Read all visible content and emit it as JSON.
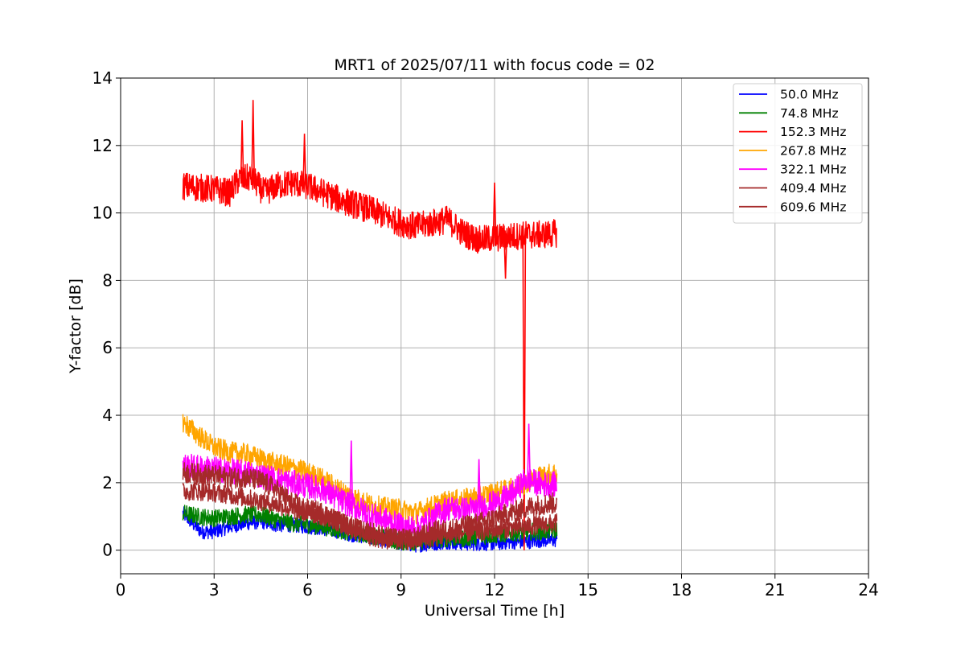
{
  "chart_data": {
    "type": "line",
    "title": "MRT1 of 2025/07/11 with focus code = 02",
    "xlabel": "Universal Time [h]",
    "ylabel": "Y-factor [dB]",
    "xlim": [
      0,
      24
    ],
    "ylim": [
      -0.7,
      14
    ],
    "xticks": [
      0,
      3,
      6,
      9,
      12,
      15,
      18,
      21,
      24
    ],
    "yticks": [
      0,
      2,
      4,
      6,
      8,
      10,
      12,
      14
    ],
    "grid": true,
    "legend_position": "top-right",
    "series": [
      {
        "name": " 50.0 MHz",
        "color": "#0000ff",
        "noise": 0.22,
        "points": [
          [
            2.0,
            1.1
          ],
          [
            2.3,
            0.8
          ],
          [
            2.6,
            0.55
          ],
          [
            3.0,
            0.55
          ],
          [
            3.5,
            0.7
          ],
          [
            4.0,
            0.8
          ],
          [
            4.5,
            0.85
          ],
          [
            5.0,
            0.75
          ],
          [
            5.5,
            0.75
          ],
          [
            6.0,
            0.7
          ],
          [
            6.5,
            0.65
          ],
          [
            7.0,
            0.55
          ],
          [
            7.5,
            0.45
          ],
          [
            8.0,
            0.4
          ],
          [
            8.5,
            0.3
          ],
          [
            9.0,
            0.2
          ],
          [
            9.5,
            0.15
          ],
          [
            10.0,
            0.2
          ],
          [
            10.5,
            0.25
          ],
          [
            11.0,
            0.2
          ],
          [
            11.5,
            0.2
          ],
          [
            12.0,
            0.2
          ],
          [
            12.5,
            0.25
          ],
          [
            13.0,
            0.25
          ],
          [
            13.5,
            0.3
          ],
          [
            14.0,
            0.3
          ]
        ]
      },
      {
        "name": " 74.8 MHz",
        "color": "#008000",
        "noise": 0.26,
        "points": [
          [
            2.0,
            1.1
          ],
          [
            2.5,
            1.0
          ],
          [
            3.0,
            0.95
          ],
          [
            3.5,
            1.0
          ],
          [
            4.0,
            1.05
          ],
          [
            4.5,
            1.05
          ],
          [
            5.0,
            0.9
          ],
          [
            5.5,
            0.8
          ],
          [
            6.0,
            0.75
          ],
          [
            6.5,
            0.7
          ],
          [
            7.0,
            0.6
          ],
          [
            7.5,
            0.5
          ],
          [
            8.0,
            0.45
          ],
          [
            8.5,
            0.35
          ],
          [
            9.0,
            0.25
          ],
          [
            9.5,
            0.25
          ],
          [
            10.0,
            0.3
          ],
          [
            10.5,
            0.35
          ],
          [
            11.0,
            0.35
          ],
          [
            11.5,
            0.4
          ],
          [
            12.0,
            0.45
          ],
          [
            12.5,
            0.5
          ],
          [
            13.0,
            0.55
          ],
          [
            13.5,
            0.55
          ],
          [
            14.0,
            0.6
          ]
        ]
      },
      {
        "name": " 152.3 MHz",
        "color": "#ff0000",
        "noise": 0.42,
        "points": [
          [
            2.0,
            10.8
          ],
          [
            2.5,
            10.75
          ],
          [
            3.0,
            10.7
          ],
          [
            3.5,
            10.6
          ],
          [
            3.8,
            11.0
          ],
          [
            4.2,
            11.05
          ],
          [
            4.6,
            10.6
          ],
          [
            5.0,
            10.8
          ],
          [
            5.5,
            10.9
          ],
          [
            6.0,
            10.8
          ],
          [
            6.5,
            10.6
          ],
          [
            7.0,
            10.4
          ],
          [
            7.5,
            10.25
          ],
          [
            8.0,
            10.1
          ],
          [
            8.5,
            9.9
          ],
          [
            9.0,
            9.7
          ],
          [
            9.5,
            9.6
          ],
          [
            10.0,
            9.7
          ],
          [
            10.5,
            9.8
          ],
          [
            11.0,
            9.4
          ],
          [
            11.5,
            9.2
          ],
          [
            12.0,
            9.25
          ],
          [
            12.5,
            9.3
          ],
          [
            13.0,
            9.35
          ],
          [
            13.5,
            9.35
          ],
          [
            14.0,
            9.4
          ]
        ],
        "spikes": [
          [
            3.9,
            12.75
          ],
          [
            4.25,
            13.35
          ],
          [
            5.9,
            12.35
          ],
          [
            12.0,
            10.9
          ],
          [
            12.35,
            8.05
          ],
          [
            12.95,
            0.0
          ]
        ]
      },
      {
        "name": " 267.8 MHz",
        "color": "#ffa500",
        "noise": 0.32,
        "points": [
          [
            2.0,
            3.8
          ],
          [
            2.5,
            3.4
          ],
          [
            3.0,
            3.05
          ],
          [
            3.5,
            2.9
          ],
          [
            4.0,
            2.85
          ],
          [
            4.5,
            2.7
          ],
          [
            5.0,
            2.55
          ],
          [
            5.5,
            2.45
          ],
          [
            6.0,
            2.3
          ],
          [
            6.5,
            2.1
          ],
          [
            7.0,
            1.8
          ],
          [
            7.5,
            1.55
          ],
          [
            8.0,
            1.35
          ],
          [
            8.5,
            1.25
          ],
          [
            9.0,
            1.2
          ],
          [
            9.5,
            1.1
          ],
          [
            10.0,
            1.3
          ],
          [
            10.5,
            1.45
          ],
          [
            11.0,
            1.5
          ],
          [
            11.5,
            1.6
          ],
          [
            12.0,
            1.7
          ],
          [
            12.5,
            1.8
          ],
          [
            13.0,
            2.0
          ],
          [
            13.5,
            2.2
          ],
          [
            14.0,
            2.3
          ]
        ]
      },
      {
        "name": " 322.1 MHz",
        "color": "#ff00ff",
        "noise": 0.38,
        "points": [
          [
            2.0,
            2.5
          ],
          [
            2.5,
            2.45
          ],
          [
            3.0,
            2.4
          ],
          [
            3.5,
            2.35
          ],
          [
            4.0,
            2.3
          ],
          [
            4.5,
            2.2
          ],
          [
            5.0,
            2.1
          ],
          [
            5.5,
            2.0
          ],
          [
            6.0,
            1.9
          ],
          [
            6.5,
            1.8
          ],
          [
            7.0,
            1.5
          ],
          [
            7.5,
            1.3
          ],
          [
            8.0,
            1.05
          ],
          [
            8.5,
            0.9
          ],
          [
            9.0,
            0.7
          ],
          [
            9.5,
            0.65
          ],
          [
            10.0,
            0.95
          ],
          [
            10.5,
            1.25
          ],
          [
            11.0,
            1.2
          ],
          [
            11.5,
            1.25
          ],
          [
            12.0,
            1.4
          ],
          [
            12.5,
            1.6
          ],
          [
            13.0,
            2.1
          ],
          [
            13.5,
            1.95
          ],
          [
            14.0,
            1.95
          ]
        ],
        "spikes": [
          [
            7.4,
            3.25
          ],
          [
            11.5,
            2.7
          ],
          [
            13.1,
            3.75
          ]
        ]
      },
      {
        "name": " 409.4 MHz",
        "color": "#a52a2a",
        "noise": 0.32,
        "points": [
          [
            2.0,
            2.3
          ],
          [
            2.5,
            2.25
          ],
          [
            3.0,
            2.2
          ],
          [
            3.5,
            2.15
          ],
          [
            4.0,
            2.15
          ],
          [
            4.5,
            2.05
          ],
          [
            5.0,
            1.8
          ],
          [
            5.5,
            1.4
          ],
          [
            6.0,
            1.2
          ],
          [
            6.5,
            1.1
          ],
          [
            7.0,
            0.85
          ],
          [
            7.5,
            0.65
          ],
          [
            8.0,
            0.45
          ],
          [
            8.5,
            0.35
          ],
          [
            9.0,
            0.3
          ],
          [
            9.5,
            0.35
          ],
          [
            10.0,
            0.55
          ],
          [
            10.5,
            0.6
          ],
          [
            11.0,
            0.7
          ],
          [
            11.5,
            0.8
          ],
          [
            12.0,
            0.95
          ],
          [
            12.5,
            1.1
          ],
          [
            13.0,
            1.25
          ],
          [
            13.5,
            1.35
          ],
          [
            14.0,
            1.4
          ]
        ]
      },
      {
        "name": " 609.6 MHz",
        "color": "#a52a2a",
        "noise": 0.28,
        "points": [
          [
            2.0,
            1.75
          ],
          [
            2.5,
            1.75
          ],
          [
            3.0,
            1.7
          ],
          [
            3.5,
            1.65
          ],
          [
            4.0,
            1.55
          ],
          [
            4.5,
            1.45
          ],
          [
            5.0,
            1.35
          ],
          [
            5.5,
            1.2
          ],
          [
            6.0,
            1.1
          ],
          [
            6.5,
            1.0
          ],
          [
            7.0,
            0.85
          ],
          [
            7.5,
            0.7
          ],
          [
            8.0,
            0.55
          ],
          [
            8.5,
            0.45
          ],
          [
            9.0,
            0.35
          ],
          [
            9.5,
            0.3
          ],
          [
            10.0,
            0.35
          ],
          [
            10.5,
            0.45
          ],
          [
            11.0,
            0.5
          ],
          [
            11.5,
            0.55
          ],
          [
            12.0,
            0.6
          ],
          [
            12.5,
            0.65
          ],
          [
            13.0,
            0.7
          ],
          [
            13.5,
            0.75
          ],
          [
            14.0,
            0.8
          ]
        ]
      }
    ]
  }
}
